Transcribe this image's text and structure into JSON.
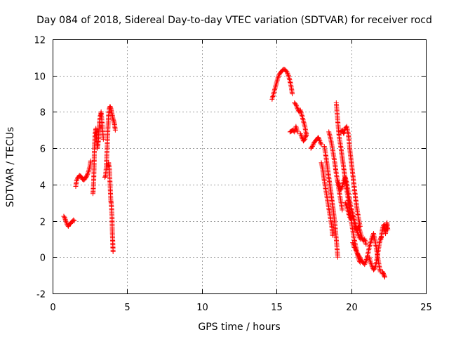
{
  "chart_data": {
    "type": "scatter",
    "title": "Day 084 of 2018, Sidereal Day-to-day VTEC variation (SDTVAR) for receiver rocd",
    "xlabel": "GPS time / hours",
    "ylabel": "SDTVAR / TECUs",
    "xlim": [
      0,
      25
    ],
    "ylim": [
      -2,
      12
    ],
    "xticks": [
      0,
      5,
      10,
      15,
      20,
      25
    ],
    "yticks": [
      -2,
      0,
      2,
      4,
      6,
      8,
      10,
      12
    ],
    "xtick_labels": [
      "0",
      "5",
      "10",
      "15",
      "20",
      "25"
    ],
    "ytick_labels": [
      "-2",
      "0",
      "2",
      "4",
      "6",
      "8",
      "10",
      "12"
    ],
    "grid": true,
    "marker": "plus",
    "color": "#ff0000",
    "segments": [
      [
        [
          0.75,
          2.25
        ],
        [
          0.8,
          2.2
        ],
        [
          0.9,
          1.95
        ],
        [
          1.0,
          1.75
        ],
        [
          1.05,
          1.7
        ],
        [
          1.1,
          1.8
        ],
        [
          1.2,
          1.85
        ],
        [
          1.3,
          1.95
        ],
        [
          1.4,
          2.05
        ],
        [
          1.45,
          2.0
        ]
      ],
      [
        [
          1.55,
          3.9
        ],
        [
          1.6,
          4.2
        ],
        [
          1.7,
          4.4
        ],
        [
          1.8,
          4.5
        ],
        [
          1.9,
          4.45
        ],
        [
          2.0,
          4.3
        ],
        [
          2.1,
          4.25
        ],
        [
          2.2,
          4.35
        ],
        [
          2.3,
          4.5
        ],
        [
          2.4,
          4.7
        ],
        [
          2.5,
          5.0
        ],
        [
          2.55,
          5.3
        ]
      ],
      [
        [
          2.7,
          3.5
        ],
        [
          2.72,
          3.7
        ],
        [
          2.75,
          4.2
        ],
        [
          2.78,
          5.0
        ],
        [
          2.8,
          6.0
        ],
        [
          2.85,
          6.8
        ],
        [
          2.9,
          7.1
        ],
        [
          2.95,
          6.6
        ],
        [
          3.0,
          6.0
        ],
        [
          3.05,
          6.3
        ],
        [
          3.1,
          6.9
        ],
        [
          3.15,
          7.5
        ],
        [
          3.2,
          7.8
        ],
        [
          3.25,
          8.0
        ],
        [
          3.3,
          7.5
        ],
        [
          3.35,
          7.0
        ],
        [
          3.4,
          6.5
        ]
      ],
      [
        [
          3.5,
          4.4
        ],
        [
          3.55,
          4.5
        ],
        [
          3.6,
          5.0
        ],
        [
          3.65,
          6.0
        ],
        [
          3.7,
          7.0
        ],
        [
          3.75,
          7.8
        ],
        [
          3.8,
          8.2
        ],
        [
          3.85,
          8.3
        ],
        [
          3.9,
          8.2
        ],
        [
          3.95,
          8.0
        ],
        [
          4.0,
          7.8
        ],
        [
          4.05,
          7.6
        ],
        [
          4.1,
          7.5
        ],
        [
          4.15,
          7.3
        ],
        [
          4.2,
          7.0
        ]
      ],
      [
        [
          3.7,
          5.0
        ],
        [
          3.75,
          5.2
        ],
        [
          3.8,
          4.9
        ],
        [
          3.9,
          3.1
        ],
        [
          3.92,
          3.0
        ],
        [
          3.95,
          2.7
        ],
        [
          3.98,
          2.2
        ],
        [
          4.0,
          1.4
        ],
        [
          4.02,
          1.0
        ],
        [
          4.05,
          0.3
        ]
      ],
      [
        [
          14.7,
          8.7
        ],
        [
          14.8,
          9.0
        ],
        [
          14.9,
          9.3
        ],
        [
          15.0,
          9.6
        ],
        [
          15.1,
          9.9
        ],
        [
          15.2,
          10.1
        ],
        [
          15.3,
          10.2
        ],
        [
          15.4,
          10.3
        ],
        [
          15.5,
          10.35
        ],
        [
          15.6,
          10.3
        ],
        [
          15.7,
          10.2
        ],
        [
          15.8,
          10.0
        ],
        [
          15.9,
          9.7
        ],
        [
          16.0,
          9.3
        ],
        [
          16.05,
          9.0
        ]
      ],
      [
        [
          15.9,
          6.9
        ],
        [
          16.0,
          6.95
        ],
        [
          16.1,
          7.0
        ],
        [
          16.2,
          6.9
        ],
        [
          16.3,
          7.2
        ],
        [
          16.4,
          6.9
        ]
      ],
      [
        [
          16.2,
          8.5
        ],
        [
          16.3,
          8.4
        ],
        [
          16.4,
          8.2
        ],
        [
          16.5,
          8.0
        ],
        [
          16.6,
          8.1
        ],
        [
          16.7,
          7.8
        ],
        [
          16.8,
          7.5
        ],
        [
          16.9,
          7.2
        ],
        [
          17.0,
          6.7
        ]
      ],
      [
        [
          16.6,
          6.8
        ],
        [
          16.7,
          6.6
        ],
        [
          16.8,
          6.4
        ],
        [
          16.9,
          6.5
        ],
        [
          17.0,
          6.8
        ]
      ],
      [
        [
          17.3,
          6.0
        ],
        [
          17.4,
          6.1
        ],
        [
          17.5,
          6.3
        ],
        [
          17.6,
          6.4
        ],
        [
          17.7,
          6.5
        ],
        [
          17.8,
          6.6
        ],
        [
          17.9,
          6.4
        ],
        [
          18.0,
          6.2
        ]
      ],
      [
        [
          18.0,
          5.2
        ],
        [
          18.1,
          4.8
        ],
        [
          18.2,
          4.2
        ],
        [
          18.3,
          3.7
        ],
        [
          18.4,
          3.2
        ],
        [
          18.5,
          2.7
        ],
        [
          18.6,
          2.2
        ],
        [
          18.7,
          1.7
        ],
        [
          18.75,
          1.2
        ]
      ],
      [
        [
          18.2,
          6.1
        ],
        [
          18.3,
          5.6
        ],
        [
          18.4,
          5.0
        ],
        [
          18.5,
          4.4
        ],
        [
          18.6,
          3.8
        ],
        [
          18.7,
          3.2
        ],
        [
          18.8,
          2.6
        ],
        [
          18.9,
          1.9
        ],
        [
          19.0,
          1.0
        ],
        [
          19.05,
          0.5
        ],
        [
          19.1,
          0.0
        ]
      ],
      [
        [
          18.5,
          6.9
        ],
        [
          18.6,
          6.6
        ],
        [
          18.7,
          6.2
        ],
        [
          18.8,
          5.7
        ],
        [
          18.9,
          5.2
        ],
        [
          19.0,
          4.6
        ],
        [
          19.1,
          4.1
        ],
        [
          19.2,
          3.6
        ],
        [
          19.3,
          3.1
        ],
        [
          19.4,
          2.6
        ]
      ],
      [
        [
          19.0,
          8.5
        ],
        [
          19.05,
          8.0
        ],
        [
          19.1,
          7.5
        ],
        [
          19.15,
          7.0
        ],
        [
          19.2,
          6.6
        ],
        [
          19.3,
          6.1
        ],
        [
          19.4,
          5.5
        ],
        [
          19.5,
          4.9
        ],
        [
          19.6,
          4.3
        ],
        [
          19.7,
          3.7
        ],
        [
          19.8,
          3.2
        ],
        [
          19.9,
          2.6
        ],
        [
          20.0,
          2.0
        ],
        [
          20.1,
          1.5
        ],
        [
          20.2,
          1.0
        ],
        [
          20.3,
          0.6
        ],
        [
          20.4,
          0.2
        ],
        [
          20.5,
          -0.1
        ],
        [
          20.6,
          -0.3
        ]
      ],
      [
        [
          19.3,
          6.9
        ],
        [
          19.4,
          7.0
        ],
        [
          19.5,
          6.8
        ],
        [
          19.6,
          7.1
        ],
        [
          19.7,
          7.2
        ],
        [
          19.8,
          6.8
        ],
        [
          19.85,
          6.5
        ],
        [
          19.9,
          6.0
        ],
        [
          20.0,
          5.3
        ],
        [
          20.1,
          4.6
        ],
        [
          20.2,
          3.9
        ],
        [
          20.3,
          3.2
        ],
        [
          20.4,
          2.6
        ],
        [
          20.5,
          2.1
        ],
        [
          20.6,
          1.7
        ]
      ],
      [
        [
          19.1,
          4.2
        ],
        [
          19.2,
          3.9
        ],
        [
          19.3,
          3.7
        ],
        [
          19.4,
          3.9
        ],
        [
          19.5,
          4.2
        ],
        [
          19.6,
          4.4
        ],
        [
          19.7,
          4.1
        ],
        [
          19.8,
          3.6
        ],
        [
          19.9,
          3.1
        ],
        [
          20.0,
          2.7
        ],
        [
          20.1,
          2.4
        ],
        [
          20.2,
          2.0
        ],
        [
          20.3,
          1.6
        ],
        [
          20.4,
          1.4
        ],
        [
          20.5,
          1.2
        ],
        [
          20.6,
          1.0
        ]
      ],
      [
        [
          19.6,
          3.0
        ],
        [
          19.7,
          2.8
        ],
        [
          19.8,
          2.5
        ],
        [
          19.9,
          2.2
        ],
        [
          20.0,
          2.1
        ],
        [
          20.1,
          2.3
        ],
        [
          20.2,
          2.0
        ],
        [
          20.3,
          1.7
        ],
        [
          20.4,
          1.5
        ],
        [
          20.5,
          1.7
        ],
        [
          20.6,
          1.4
        ],
        [
          20.7,
          1.1
        ],
        [
          20.8,
          0.9
        ],
        [
          20.9,
          1.0
        ],
        [
          21.0,
          0.7
        ]
      ],
      [
        [
          20.1,
          0.8
        ],
        [
          20.3,
          0.4
        ],
        [
          20.5,
          0.1
        ],
        [
          20.7,
          -0.2
        ],
        [
          20.9,
          -0.4
        ],
        [
          21.0,
          -0.2
        ],
        [
          21.1,
          0.1
        ],
        [
          21.2,
          0.5
        ],
        [
          21.3,
          0.8
        ],
        [
          21.4,
          1.1
        ],
        [
          21.5,
          1.3
        ],
        [
          21.6,
          0.9
        ],
        [
          21.7,
          0.4
        ],
        [
          21.8,
          -0.1
        ],
        [
          21.9,
          -0.6
        ],
        [
          21.95,
          -0.8
        ]
      ],
      [
        [
          21.2,
          0.0
        ],
        [
          21.3,
          -0.3
        ],
        [
          21.4,
          -0.5
        ],
        [
          21.5,
          -0.7
        ],
        [
          21.6,
          -0.6
        ],
        [
          21.7,
          -0.2
        ],
        [
          21.8,
          0.3
        ],
        [
          21.9,
          0.8
        ],
        [
          22.0,
          1.1
        ]
      ],
      [
        [
          22.1,
          -0.8
        ],
        [
          22.15,
          -0.9
        ],
        [
          22.2,
          -1.0
        ],
        [
          22.25,
          -1.1
        ]
      ],
      [
        [
          22.0,
          1.0
        ],
        [
          22.05,
          1.3
        ],
        [
          22.1,
          1.6
        ],
        [
          22.2,
          1.8
        ],
        [
          22.25,
          1.5
        ],
        [
          22.3,
          1.3
        ],
        [
          22.35,
          1.7
        ],
        [
          22.4,
          1.9
        ],
        [
          22.45,
          1.5
        ]
      ]
    ]
  }
}
